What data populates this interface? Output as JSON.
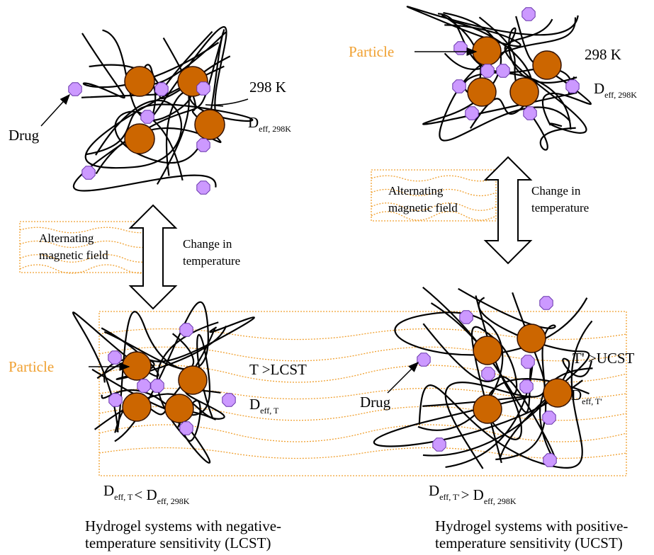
{
  "left": {
    "top": {
      "temperature": "298 K",
      "diffusion": {
        "symbol": "D",
        "subscript": "eff, 298K"
      },
      "drug_label": "Drug"
    },
    "transition": {
      "field": [
        "Alternating",
        "magnetic field"
      ],
      "temperature": [
        "Change in",
        "temperature"
      ]
    },
    "bottom": {
      "particle_label": "Particle",
      "condition": "T >LCST",
      "diffusion": {
        "symbol": "D",
        "subscript": "eff, T"
      },
      "comparison": {
        "left": {
          "symbol": "D",
          "subscript": "eff, T"
        },
        "operator": "<",
        "right": {
          "symbol": "D",
          "subscript": "eff, 298K"
        }
      }
    },
    "caption": [
      "Hydrogel systems with negative-",
      "temperature sensitivity (LCST)"
    ]
  },
  "right": {
    "top": {
      "particle_label": "Particle",
      "temperature": "298 K",
      "diffusion": {
        "symbol": "D",
        "subscript": "eff, 298K"
      }
    },
    "transition": {
      "field": [
        "Alternating",
        "magnetic field"
      ],
      "temperature": [
        "Change in",
        "temperature"
      ]
    },
    "bottom": {
      "drug_label": "Drug",
      "condition": "T' >UCST",
      "diffusion": {
        "symbol": "D",
        "subscript": "eff, T'"
      },
      "comparison": {
        "left": {
          "symbol": "D",
          "subscript": "eff, T'"
        },
        "operator": ">",
        "right": {
          "symbol": "D",
          "subscript": "eff, 298K"
        }
      }
    },
    "caption": [
      "Hydrogel systems with positive-",
      "temperature sensitivity (UCST)"
    ]
  }
}
